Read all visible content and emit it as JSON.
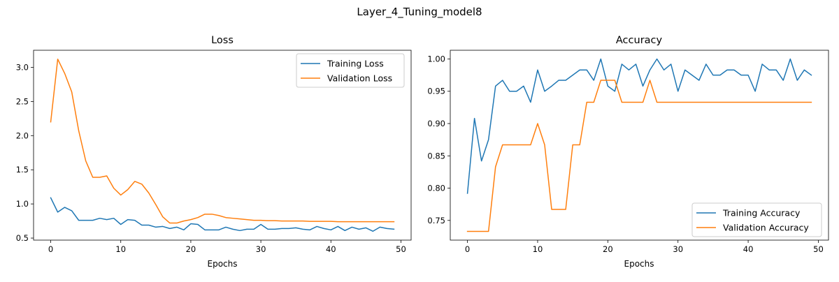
{
  "figure": {
    "title": "Layer_4_Tuning_model8"
  },
  "chart_data": [
    {
      "type": "line",
      "title": "Loss",
      "xlabel": "Epochs",
      "ylabel": "",
      "xlim": [
        -2.45,
        51.45
      ],
      "ylim": [
        0.47,
        3.25
      ],
      "xticks": [
        0,
        10,
        20,
        30,
        40,
        50
      ],
      "yticks": [
        0.5,
        1.0,
        1.5,
        2.0,
        2.5,
        3.0
      ],
      "xtick_labels": [
        "0",
        "10",
        "20",
        "30",
        "40",
        "50"
      ],
      "ytick_labels": [
        "0.5",
        "1.0",
        "1.5",
        "2.0",
        "2.5",
        "3.0"
      ],
      "legend": "top-right",
      "grid": false,
      "x": [
        0,
        1,
        2,
        3,
        4,
        5,
        6,
        7,
        8,
        9,
        10,
        11,
        12,
        13,
        14,
        15,
        16,
        17,
        18,
        19,
        20,
        21,
        22,
        23,
        24,
        25,
        26,
        27,
        28,
        29,
        30,
        31,
        32,
        33,
        34,
        35,
        36,
        37,
        38,
        39,
        40,
        41,
        42,
        43,
        44,
        45,
        46,
        47,
        48,
        49
      ],
      "series": [
        {
          "name": "Training Loss",
          "color": "#1f77b4",
          "values": [
            1.09,
            0.88,
            0.95,
            0.9,
            0.76,
            0.76,
            0.76,
            0.79,
            0.77,
            0.79,
            0.7,
            0.77,
            0.76,
            0.69,
            0.69,
            0.66,
            0.67,
            0.64,
            0.66,
            0.62,
            0.71,
            0.7,
            0.62,
            0.62,
            0.62,
            0.66,
            0.63,
            0.61,
            0.63,
            0.63,
            0.7,
            0.63,
            0.63,
            0.64,
            0.64,
            0.65,
            0.63,
            0.62,
            0.67,
            0.64,
            0.62,
            0.67,
            0.61,
            0.66,
            0.63,
            0.65,
            0.6,
            0.66,
            0.64,
            0.63
          ]
        },
        {
          "name": "Validation Loss",
          "color": "#ff7f0e",
          "values": [
            2.2,
            3.12,
            2.91,
            2.64,
            2.07,
            1.63,
            1.39,
            1.39,
            1.41,
            1.23,
            1.13,
            1.21,
            1.33,
            1.29,
            1.16,
            0.99,
            0.81,
            0.72,
            0.72,
            0.75,
            0.77,
            0.8,
            0.85,
            0.85,
            0.83,
            0.8,
            0.79,
            0.78,
            0.77,
            0.76,
            0.76,
            0.755,
            0.755,
            0.75,
            0.75,
            0.75,
            0.75,
            0.745,
            0.745,
            0.745,
            0.745,
            0.74,
            0.74,
            0.74,
            0.74,
            0.74,
            0.74,
            0.74,
            0.74,
            0.74
          ]
        }
      ]
    },
    {
      "type": "line",
      "title": "Accuracy",
      "xlabel": "Epochs",
      "ylabel": "",
      "xlim": [
        -2.45,
        51.45
      ],
      "ylim": [
        0.7195,
        1.0135
      ],
      "xticks": [
        0,
        10,
        20,
        30,
        40,
        50
      ],
      "yticks": [
        0.75,
        0.8,
        0.85,
        0.9,
        0.95,
        1.0
      ],
      "xtick_labels": [
        "0",
        "10",
        "20",
        "30",
        "40",
        "50"
      ],
      "ytick_labels": [
        "0.75",
        "0.80",
        "0.85",
        "0.90",
        "0.95",
        "1.00"
      ],
      "legend": "bottom-right",
      "grid": false,
      "x": [
        0,
        1,
        2,
        3,
        4,
        5,
        6,
        7,
        8,
        9,
        10,
        11,
        12,
        13,
        14,
        15,
        16,
        17,
        18,
        19,
        20,
        21,
        22,
        23,
        24,
        25,
        26,
        27,
        28,
        29,
        30,
        31,
        32,
        33,
        34,
        35,
        36,
        37,
        38,
        39,
        40,
        41,
        42,
        43,
        44,
        45,
        46,
        47,
        48,
        49
      ],
      "series": [
        {
          "name": "Training Accuracy",
          "color": "#1f77b4",
          "values": [
            0.792,
            0.908,
            0.842,
            0.875,
            0.958,
            0.967,
            0.95,
            0.95,
            0.958,
            0.933,
            0.983,
            0.95,
            0.958,
            0.967,
            0.967,
            0.975,
            0.983,
            0.983,
            0.967,
            1.0,
            0.958,
            0.95,
            0.992,
            0.983,
            0.992,
            0.958,
            0.983,
            1.0,
            0.983,
            0.992,
            0.95,
            0.983,
            0.975,
            0.967,
            0.992,
            0.975,
            0.975,
            0.983,
            0.983,
            0.975,
            0.975,
            0.95,
            0.992,
            0.983,
            0.983,
            0.967,
            1.0,
            0.967,
            0.983,
            0.975
          ]
        },
        {
          "name": "Validation Accuracy",
          "color": "#ff7f0e",
          "values": [
            0.733,
            0.733,
            0.733,
            0.733,
            0.833,
            0.867,
            0.867,
            0.867,
            0.867,
            0.867,
            0.9,
            0.867,
            0.767,
            0.767,
            0.767,
            0.867,
            0.867,
            0.933,
            0.933,
            0.967,
            0.967,
            0.967,
            0.933,
            0.933,
            0.933,
            0.933,
            0.967,
            0.933,
            0.933,
            0.933,
            0.933,
            0.933,
            0.933,
            0.933,
            0.933,
            0.933,
            0.933,
            0.933,
            0.933,
            0.933,
            0.933,
            0.933,
            0.933,
            0.933,
            0.933,
            0.933,
            0.933,
            0.933,
            0.933,
            0.933
          ]
        }
      ]
    }
  ]
}
